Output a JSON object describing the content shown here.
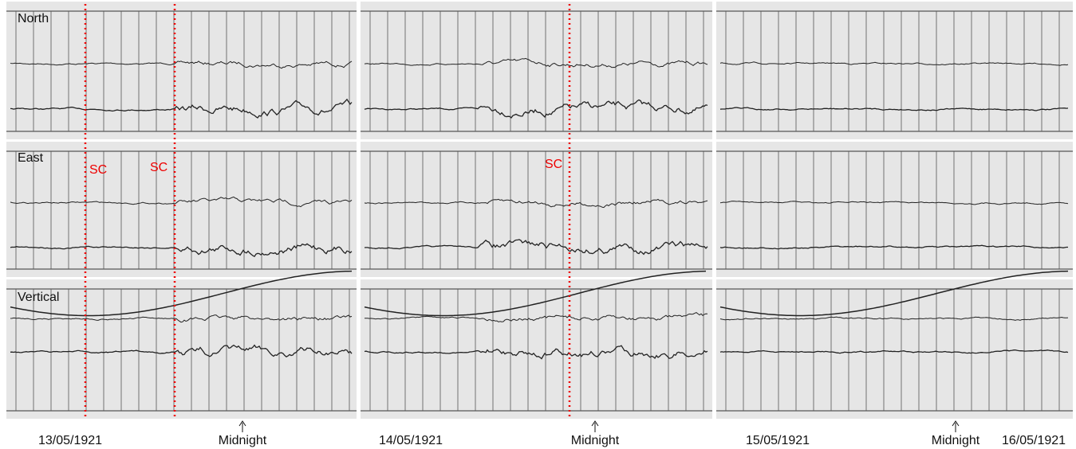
{
  "rows": [
    "North",
    "East",
    "Vertical"
  ],
  "sc_labels": [
    "SC",
    "SC",
    "SC"
  ],
  "dates": [
    "13/05/1921",
    "14/05/1921",
    "15/05/1921",
    "16/05/1921"
  ],
  "midnight": [
    "Midnight",
    "Midnight",
    "Midnight"
  ]
}
